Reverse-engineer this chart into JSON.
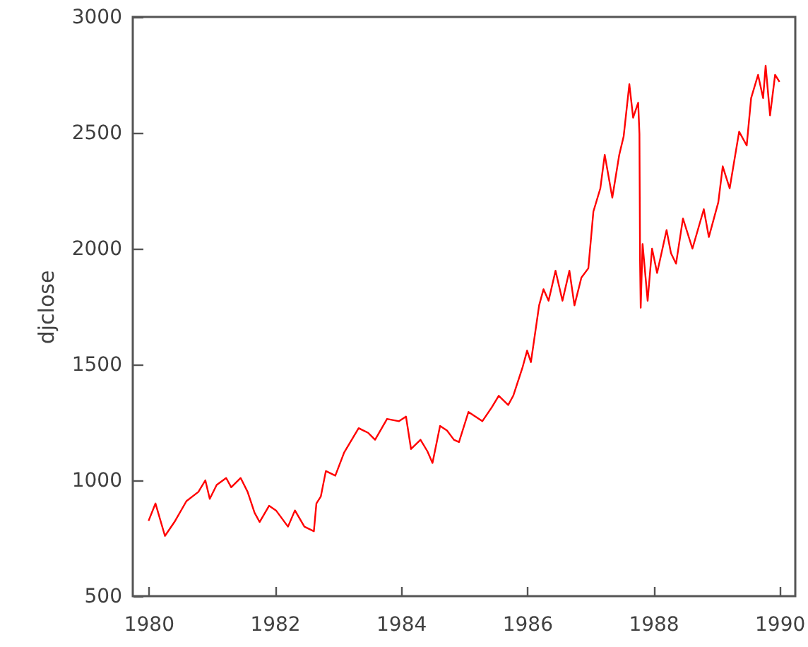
{
  "chart_data": {
    "type": "line",
    "ylabel": "djclose",
    "x": [
      1980.0,
      1980.11,
      1980.26,
      1980.41,
      1980.6,
      1980.79,
      1980.9,
      1980.97,
      1981.08,
      1981.23,
      1981.31,
      1981.46,
      1981.57,
      1981.68,
      1981.76,
      1981.91,
      1982.02,
      1982.21,
      1982.32,
      1982.47,
      1982.62,
      1982.66,
      1982.73,
      1982.81,
      1982.96,
      1983.1,
      1983.33,
      1983.48,
      1983.59,
      1983.78,
      1983.97,
      1984.08,
      1984.16,
      1984.31,
      1984.42,
      1984.5,
      1984.62,
      1984.73,
      1984.84,
      1984.92,
      1985.07,
      1985.29,
      1985.44,
      1985.55,
      1985.7,
      1985.78,
      1985.93,
      1986.0,
      1986.06,
      1986.19,
      1986.26,
      1986.34,
      1986.45,
      1986.56,
      1986.67,
      1986.75,
      1986.86,
      1986.97,
      1987.05,
      1987.16,
      1987.23,
      1987.35,
      1987.46,
      1987.53,
      1987.62,
      1987.68,
      1987.76,
      1987.78,
      1987.79,
      1987.8,
      1987.83,
      1987.91,
      1987.98,
      1988.06,
      1988.21,
      1988.28,
      1988.36,
      1988.47,
      1988.62,
      1988.8,
      1988.88,
      1989.03,
      1989.1,
      1989.21,
      1989.36,
      1989.48,
      1989.55,
      1989.66,
      1989.74,
      1989.78,
      1989.85,
      1989.93,
      1990.0
    ],
    "series": [
      {
        "color": "#ff0000",
        "values": [
          825,
          900,
          760,
          820,
          910,
          950,
          1000,
          920,
          980,
          1010,
          970,
          1010,
          950,
          860,
          820,
          890,
          870,
          800,
          870,
          800,
          780,
          900,
          930,
          1040,
          1020,
          1120,
          1225,
          1205,
          1175,
          1265,
          1255,
          1275,
          1135,
          1175,
          1125,
          1075,
          1235,
          1215,
          1175,
          1165,
          1295,
          1255,
          1315,
          1365,
          1325,
          1365,
          1490,
          1560,
          1510,
          1755,
          1825,
          1775,
          1905,
          1775,
          1905,
          1755,
          1875,
          1915,
          2160,
          2260,
          2405,
          2220,
          2405,
          2485,
          2710,
          2565,
          2630,
          2495,
          1940,
          1745,
          2020,
          1775,
          2000,
          1895,
          2080,
          1980,
          1935,
          2130,
          2000,
          2170,
          2050,
          2200,
          2355,
          2260,
          2505,
          2445,
          2650,
          2750,
          2650,
          2790,
          2575,
          2750,
          2720
        ]
      }
    ],
    "xlim": [
      1979.75,
      1990.25
    ],
    "ylim": [
      500,
      3000
    ],
    "xticks": [
      1980,
      1982,
      1984,
      1986,
      1988,
      1990
    ],
    "yticks": [
      500,
      1000,
      1500,
      2000,
      2500,
      3000
    ],
    "grid": false,
    "marker": "none",
    "line_style": "solid"
  }
}
